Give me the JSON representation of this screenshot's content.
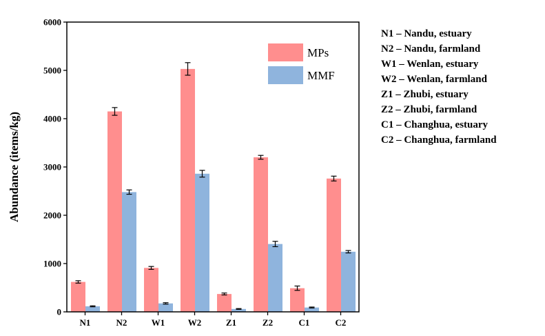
{
  "chart_data": {
    "type": "bar",
    "title": "",
    "xlabel": "",
    "ylabel": "Abundance (items/kg)",
    "ylim": [
      0,
      6000
    ],
    "yticks": [
      0,
      1000,
      2000,
      3000,
      4000,
      5000,
      6000
    ],
    "categories": [
      "N1",
      "N2",
      "W1",
      "W2",
      "Z1",
      "Z2",
      "C1",
      "C2"
    ],
    "series": [
      {
        "name": "MPs",
        "color": "#ff8e8e",
        "values": [
          620,
          4150,
          910,
          5030,
          370,
          3200,
          490,
          2760
        ],
        "errors": [
          25,
          80,
          30,
          130,
          20,
          40,
          45,
          50
        ]
      },
      {
        "name": "MMF",
        "color": "#8fb4dd",
        "values": [
          115,
          2480,
          175,
          2860,
          60,
          1405,
          90,
          1245
        ],
        "errors": [
          10,
          45,
          15,
          70,
          8,
          55,
          10,
          25
        ]
      }
    ],
    "grid": false,
    "legend_position": "top-right"
  },
  "site_key": [
    "N1 – Nandu, estuary",
    "N2 – Nandu, farmland",
    "W1 – Wenlan, estuary",
    "W2 – Wenlan, farmland",
    "Z1 – Zhubi, estuary",
    "Z2 – Zhubi, farmland",
    "C1 – Changhua, estuary",
    "C2 – Changhua, farmland"
  ]
}
